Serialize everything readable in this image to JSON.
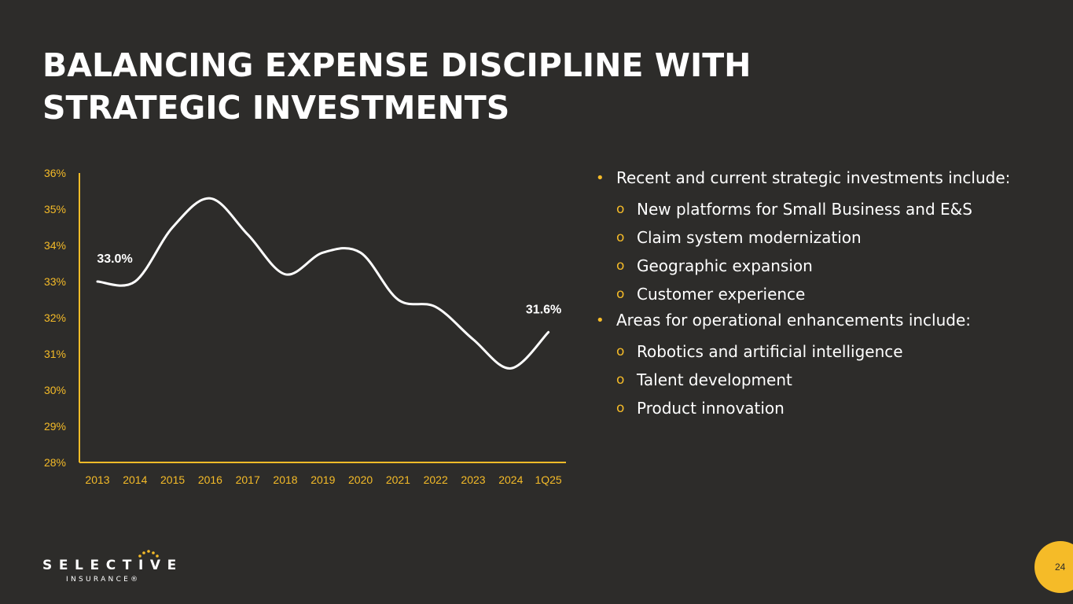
{
  "slide": {
    "title": "BALANCING EXPENSE DISCIPLINE WITH\nSTRATEGIC INVESTMENTS",
    "page_number": "24"
  },
  "colors": {
    "accent": "#f5bb28",
    "background": "#2d2c2a",
    "text": "#ffffff"
  },
  "bullets": {
    "b1": "Recent and current strategic investments include:",
    "b1_items": [
      "New platforms for Small Business and E&S",
      "Claim system modernization",
      "Geographic expansion",
      "Customer experience"
    ],
    "b2": "Areas for operational enhancements include:",
    "b2_items": [
      "Robotics and artificial intelligence",
      "Talent development",
      "Product innovation"
    ],
    "bullet_glyph": "•",
    "sub_glyph": "o"
  },
  "logo": {
    "word": "SELECTIVE",
    "sub": "INSURANCE®"
  },
  "chart_data": {
    "type": "line",
    "categories": [
      "2013",
      "2014",
      "2015",
      "2016",
      "2017",
      "2018",
      "2019",
      "2020",
      "2021",
      "2022",
      "2023",
      "2024",
      "1Q25"
    ],
    "series": [
      {
        "values": [
          33.0,
          33.0,
          34.5,
          35.3,
          34.3,
          33.2,
          33.8,
          33.8,
          32.5,
          32.3,
          31.4,
          30.6,
          31.6
        ]
      }
    ],
    "data_labels": [
      {
        "index": 0,
        "text": "33.0%"
      },
      {
        "index": 12,
        "text": "31.6%"
      }
    ],
    "y_ticks": [
      "28%",
      "29%",
      "30%",
      "31%",
      "32%",
      "33%",
      "34%",
      "35%",
      "36%"
    ],
    "ylim": [
      28,
      36
    ],
    "grid": false,
    "title": "",
    "xlabel": "",
    "ylabel": ""
  }
}
